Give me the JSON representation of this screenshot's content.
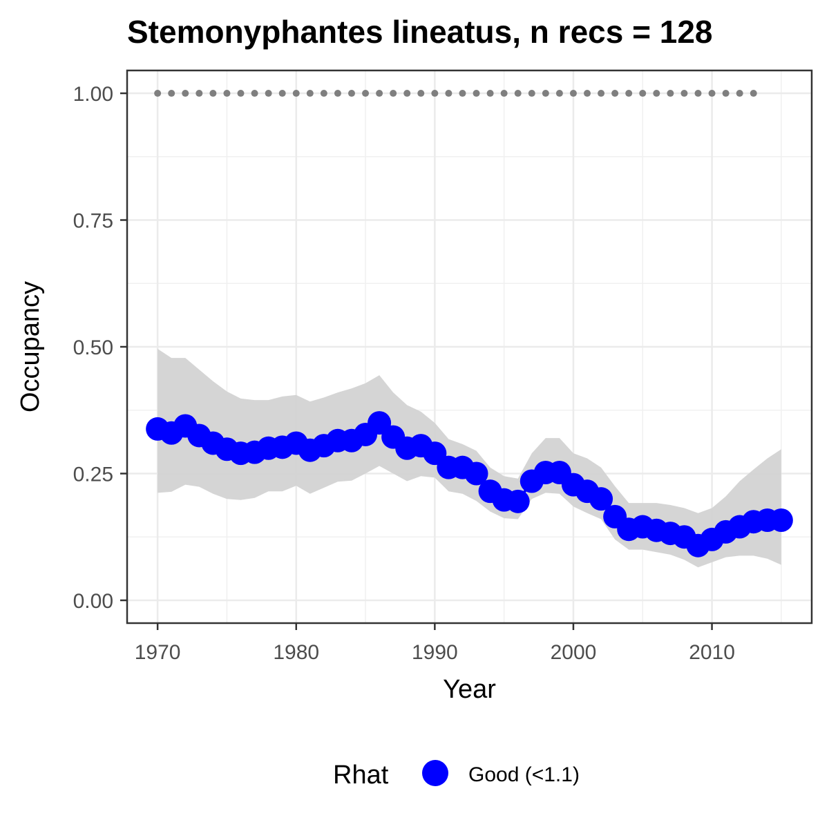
{
  "chart_data": {
    "type": "line",
    "title": "Stemonyphantes lineatus, n recs = 128",
    "xlabel": "Year",
    "ylabel": "Occupancy",
    "xlim": [
      1967.8,
      2017.2
    ],
    "ylim": [
      -0.045,
      1.045
    ],
    "x_ticks": [
      1970,
      1980,
      1990,
      2000,
      2010
    ],
    "x_tick_labels": [
      "1970",
      "1980",
      "1990",
      "2000",
      "2010"
    ],
    "y_ticks": [
      0,
      0.25,
      0.5,
      0.75,
      1
    ],
    "y_tick_labels": [
      "0.00",
      "0.25",
      "0.50",
      "0.75",
      "1.00"
    ],
    "grid": true,
    "legend": {
      "position": "bottom",
      "title": "Rhat",
      "entries": [
        {
          "label": "Good (<1.1)",
          "color": "#0000ff"
        }
      ]
    },
    "colors": {
      "estimate": "#0000ff",
      "ribbon": "#d3d3d3",
      "dots": "#7f7f7f"
    },
    "series": [
      {
        "name": "Good (<1.1)",
        "kind": "points",
        "x": [
          1970,
          1971,
          1972,
          1973,
          1974,
          1975,
          1976,
          1977,
          1978,
          1979,
          1980,
          1981,
          1982,
          1983,
          1984,
          1985,
          1986,
          1987,
          1988,
          1989,
          1990,
          1991,
          1992,
          1993,
          1994,
          1995,
          1996,
          1997,
          1998,
          1999,
          2000,
          2001,
          2002,
          2003,
          2004,
          2005,
          2006,
          2007,
          2008,
          2009,
          2010,
          2011,
          2012,
          2013,
          2014,
          2015
        ],
        "y": [
          0.338,
          0.33,
          0.344,
          0.325,
          0.31,
          0.298,
          0.29,
          0.292,
          0.3,
          0.302,
          0.31,
          0.296,
          0.305,
          0.315,
          0.315,
          0.327,
          0.35,
          0.322,
          0.3,
          0.305,
          0.29,
          0.262,
          0.262,
          0.25,
          0.215,
          0.198,
          0.195,
          0.235,
          0.252,
          0.252,
          0.228,
          0.215,
          0.2,
          0.165,
          0.14,
          0.145,
          0.138,
          0.132,
          0.125,
          0.108,
          0.12,
          0.135,
          0.145,
          0.155,
          0.158,
          0.158
        ]
      },
      {
        "name": "",
        "kind": "ribbon",
        "x": [
          1970,
          1971,
          1972,
          1973,
          1974,
          1975,
          1976,
          1977,
          1978,
          1979,
          1980,
          1981,
          1982,
          1983,
          1984,
          1985,
          1986,
          1987,
          1988,
          1989,
          1990,
          1991,
          1992,
          1993,
          1994,
          1995,
          1996,
          1997,
          1998,
          1999,
          2000,
          2001,
          2002,
          2003,
          2004,
          2005,
          2006,
          2007,
          2008,
          2009,
          2010,
          2011,
          2012,
          2013,
          2014,
          2015
        ],
        "lower": [
          0.212,
          0.214,
          0.228,
          0.224,
          0.21,
          0.2,
          0.198,
          0.202,
          0.215,
          0.215,
          0.226,
          0.21,
          0.222,
          0.234,
          0.236,
          0.25,
          0.265,
          0.25,
          0.235,
          0.245,
          0.242,
          0.215,
          0.21,
          0.196,
          0.175,
          0.162,
          0.16,
          0.2,
          0.212,
          0.21,
          0.185,
          0.172,
          0.16,
          0.12,
          0.1,
          0.1,
          0.095,
          0.09,
          0.08,
          0.065,
          0.075,
          0.085,
          0.088,
          0.088,
          0.082,
          0.07
        ]
      },
      {
        "name": "",
        "kind": "ribbon-upper",
        "x": [
          1970,
          1971,
          1972,
          1973,
          1974,
          1975,
          1976,
          1977,
          1978,
          1979,
          1980,
          1981,
          1982,
          1983,
          1984,
          1985,
          1986,
          1987,
          1988,
          1989,
          1990,
          1991,
          1992,
          1993,
          1994,
          1995,
          1996,
          1997,
          1998,
          1999,
          2000,
          2001,
          2002,
          2003,
          2004,
          2005,
          2006,
          2007,
          2008,
          2009,
          2010,
          2011,
          2012,
          2013,
          2014,
          2015
        ],
        "upper": [
          0.496,
          0.478,
          0.478,
          0.455,
          0.432,
          0.412,
          0.398,
          0.395,
          0.395,
          0.402,
          0.405,
          0.392,
          0.4,
          0.41,
          0.418,
          0.428,
          0.444,
          0.41,
          0.385,
          0.372,
          0.35,
          0.318,
          0.308,
          0.295,
          0.262,
          0.245,
          0.24,
          0.29,
          0.32,
          0.32,
          0.29,
          0.28,
          0.262,
          0.225,
          0.192,
          0.192,
          0.192,
          0.188,
          0.182,
          0.172,
          0.182,
          0.205,
          0.235,
          0.258,
          0.28,
          0.298
        ]
      },
      {
        "name": "",
        "kind": "dots",
        "x": [
          1970,
          1971,
          1972,
          1973,
          1974,
          1975,
          1976,
          1977,
          1978,
          1979,
          1980,
          1981,
          1982,
          1983,
          1984,
          1985,
          1986,
          1987,
          1988,
          1989,
          1990,
          1991,
          1992,
          1993,
          1994,
          1995,
          1996,
          1997,
          1998,
          1999,
          2000,
          2001,
          2002,
          2003,
          2004,
          2005,
          2006,
          2007,
          2008,
          2009,
          2010,
          2011,
          2012,
          2013
        ],
        "y": [
          1,
          1,
          1,
          1,
          1,
          1,
          1,
          1,
          1,
          1,
          1,
          1,
          1,
          1,
          1,
          1,
          1,
          1,
          1,
          1,
          1,
          1,
          1,
          1,
          1,
          1,
          1,
          1,
          1,
          1,
          1,
          1,
          1,
          1,
          1,
          1,
          1,
          1,
          1,
          1,
          1,
          1,
          1,
          1
        ]
      }
    ]
  }
}
